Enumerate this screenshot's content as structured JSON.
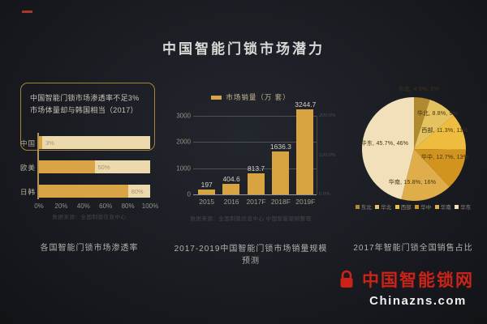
{
  "title": "中国智能门锁市场潜力",
  "logo": {
    "name": "中国智能锁网",
    "domain": "Chinazns.com"
  },
  "colors": {
    "gold": "#d8a446",
    "cream": "#ecd9ae",
    "brand_red": "#cb2318",
    "background": "#1a1c22"
  },
  "chart_data": [
    {
      "id": "penetration",
      "type": "bar",
      "orientation": "horizontal",
      "title": "各国智能门锁市场渗透率",
      "annotation": [
        "中国智能门锁市场渗透率不足3%",
        "市场体量却与韩国相当（2017）"
      ],
      "categories": [
        "中国",
        "欧美",
        "日韩"
      ],
      "values": [
        3,
        50,
        80
      ],
      "value_labels": [
        "3%",
        "50%",
        "80%"
      ],
      "xticks": [
        "0%",
        "20%",
        "40%",
        "60%",
        "80%",
        "100%"
      ],
      "xlim": [
        0,
        100
      ],
      "source": "数据来源：全国制锁信息中心"
    },
    {
      "id": "sales-forecast",
      "type": "bar",
      "title": "2017-2019中国智能门锁市场销量规模预测",
      "legend": "市场销量（万 套）",
      "categories": [
        "2015",
        "2016",
        "2017F",
        "2018F",
        "2019F"
      ],
      "values": [
        197,
        404.6,
        813.7,
        1636.3,
        3244.7
      ],
      "value_labels": [
        "197",
        "404.6",
        "813.7",
        "1636.3",
        "3244.7"
      ],
      "yticks": [
        0,
        1000,
        2000,
        3000
      ],
      "ylim": [
        0,
        3300
      ],
      "right_axis_ticks": [
        "200.0%",
        "100.0%",
        "0.0%"
      ],
      "grid": true,
      "source": "数据来源：全国制锁信息中心 中国智能锁网整理"
    },
    {
      "id": "regional-share",
      "type": "pie",
      "title": "2017年智能门锁全国销售占比",
      "slices": [
        {
          "name": "东北",
          "value": 4.9,
          "percent": "5%",
          "label": "东北, 4.9%, 5%",
          "color": "#b08a2e"
        },
        {
          "name": "华北",
          "value": 8.8,
          "percent": "9%",
          "label": "华北, 8.8%, 9%",
          "color": "#e4c25f"
        },
        {
          "name": "西部",
          "value": 11.3,
          "percent": "11%",
          "label": "西部, 11.3%, 11%",
          "color": "#eebc3e"
        },
        {
          "name": "华中",
          "value": 12.7,
          "percent": "13%",
          "label": "华中, 12.7%, 13%",
          "color": "#d1951f"
        },
        {
          "name": "华南",
          "value": 15.8,
          "percent": "16%",
          "label": "华南, 15.8%, 16%",
          "color": "#dfae4a"
        },
        {
          "name": "华东",
          "value": 45.7,
          "percent": "46%",
          "label": "华东, 45.7%, 46%",
          "color": "#f1e0ba"
        }
      ],
      "legend": [
        "东北",
        "华北",
        "西部",
        "华中",
        "华南",
        "华东"
      ],
      "legend_position": "bottom"
    }
  ]
}
